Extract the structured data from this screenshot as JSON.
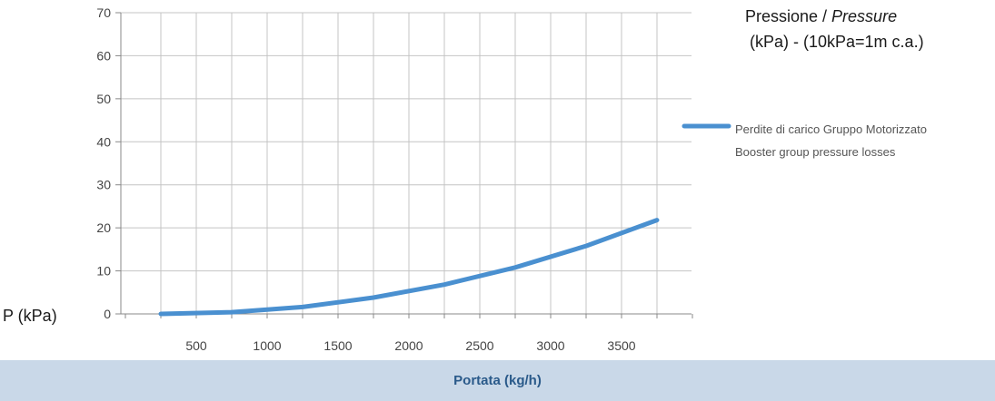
{
  "chart_data": {
    "type": "line",
    "title_main": "Pressione / ",
    "title_italic": "Pressure",
    "subtitle": "(kPa) - (10kPa=1m c.a.)",
    "ylabel": "P (kPa)",
    "xlabel": "Portata (kg/h)",
    "x_ticks": [
      500,
      1000,
      1500,
      2000,
      2500,
      3000,
      3500
    ],
    "y_ticks": [
      0,
      10,
      20,
      30,
      40,
      50,
      60,
      70
    ],
    "xlim": [
      0,
      3500
    ],
    "ylim": [
      0,
      70
    ],
    "grid": true,
    "legend_position": "right",
    "series": [
      {
        "name_line1": "Perdite di carico Gruppo Motorizzato",
        "name_line2": "Booster group pressure losses",
        "color": "#4a90d0",
        "x": [
          0,
          500,
          1000,
          1500,
          2000,
          2500,
          3000,
          3500
        ],
        "y": [
          0,
          0.4,
          1.6,
          3.8,
          6.8,
          10.8,
          15.8,
          21.8
        ]
      }
    ]
  }
}
